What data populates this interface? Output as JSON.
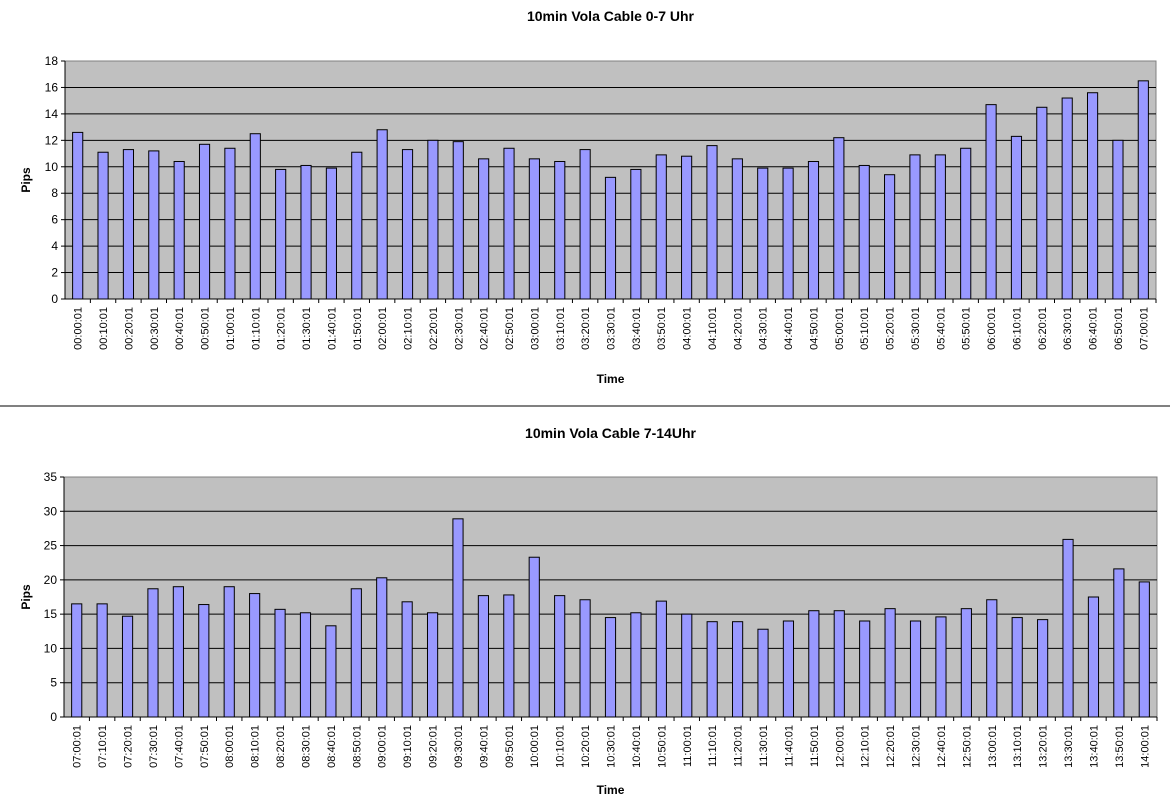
{
  "chart_data": [
    {
      "type": "bar",
      "title": "10min Vola Cable 0-7 Uhr",
      "xlabel": "Time",
      "ylabel": "Pips",
      "ylim": [
        0,
        18
      ],
      "yticks": [
        0,
        2,
        4,
        6,
        8,
        10,
        12,
        14,
        16,
        18
      ],
      "grid": true,
      "bar_color": "#9999ff",
      "plot_bg": "#c0c0c0",
      "categories": [
        "00:00:01",
        "00:10:01",
        "00:20:01",
        "00:30:01",
        "00:40:01",
        "00:50:01",
        "01:00:01",
        "01:10:01",
        "01:20:01",
        "01:30:01",
        "01:40:01",
        "01:50:01",
        "02:00:01",
        "02:10:01",
        "02:20:01",
        "02:30:01",
        "02:40:01",
        "02:50:01",
        "03:00:01",
        "03:10:01",
        "03:20:01",
        "03:30:01",
        "03:40:01",
        "03:50:01",
        "04:00:01",
        "04:10:01",
        "04:20:01",
        "04:30:01",
        "04:40:01",
        "04:50:01",
        "05:00:01",
        "05:10:01",
        "05:20:01",
        "05:30:01",
        "05:40:01",
        "05:50:01",
        "06:00:01",
        "06:10:01",
        "06:20:01",
        "06:30:01",
        "06:40:01",
        "06:50:01",
        "07:00:01"
      ],
      "values": [
        12.6,
        11.1,
        11.3,
        11.2,
        10.4,
        11.7,
        11.4,
        12.5,
        9.8,
        10.1,
        9.9,
        11.1,
        12.8,
        11.3,
        12.0,
        11.9,
        10.6,
        11.4,
        10.6,
        10.4,
        11.3,
        9.2,
        9.8,
        10.9,
        10.8,
        11.6,
        10.6,
        9.9,
        9.9,
        10.4,
        12.2,
        10.1,
        9.4,
        10.9,
        10.9,
        11.4,
        14.7,
        12.3,
        14.5,
        15.2,
        15.6,
        12.0,
        16.5
      ]
    },
    {
      "type": "bar",
      "title": "10min Vola Cable 7-14Uhr",
      "xlabel": "Time",
      "ylabel": "Pips",
      "ylim": [
        0,
        35
      ],
      "yticks": [
        0,
        5,
        10,
        15,
        20,
        25,
        30,
        35
      ],
      "grid": true,
      "bar_color": "#9999ff",
      "plot_bg": "#c0c0c0",
      "categories": [
        "07:00:01",
        "07:10:01",
        "07:20:01",
        "07:30:01",
        "07:40:01",
        "07:50:01",
        "08:00:01",
        "08:10:01",
        "08:20:01",
        "08:30:01",
        "08:40:01",
        "08:50:01",
        "09:00:01",
        "09:10:01",
        "09:20:01",
        "09:30:01",
        "09:40:01",
        "09:50:01",
        "10:00:01",
        "10:10:01",
        "10:20:01",
        "10:30:01",
        "10:40:01",
        "10:50:01",
        "11:00:01",
        "11:10:01",
        "11:20:01",
        "11:30:01",
        "11:40:01",
        "11:50:01",
        "12:00:01",
        "12:10:01",
        "12:20:01",
        "12:30:01",
        "12:40:01",
        "12:50:01",
        "13:00:01",
        "13:10:01",
        "13:20:01",
        "13:30:01",
        "13:40:01",
        "13:50:01",
        "14:00:01"
      ],
      "values": [
        16.5,
        16.5,
        14.7,
        18.7,
        19.0,
        16.4,
        19.0,
        18.0,
        15.7,
        15.2,
        13.3,
        18.7,
        20.3,
        16.8,
        15.2,
        28.9,
        17.7,
        17.8,
        23.3,
        17.7,
        17.1,
        14.5,
        15.2,
        16.9,
        15.0,
        13.9,
        13.9,
        12.8,
        14.0,
        15.5,
        15.5,
        14.0,
        15.8,
        14.0,
        14.6,
        15.8,
        17.1,
        14.5,
        14.2,
        25.9,
        17.5,
        21.6,
        19.7
      ]
    }
  ]
}
